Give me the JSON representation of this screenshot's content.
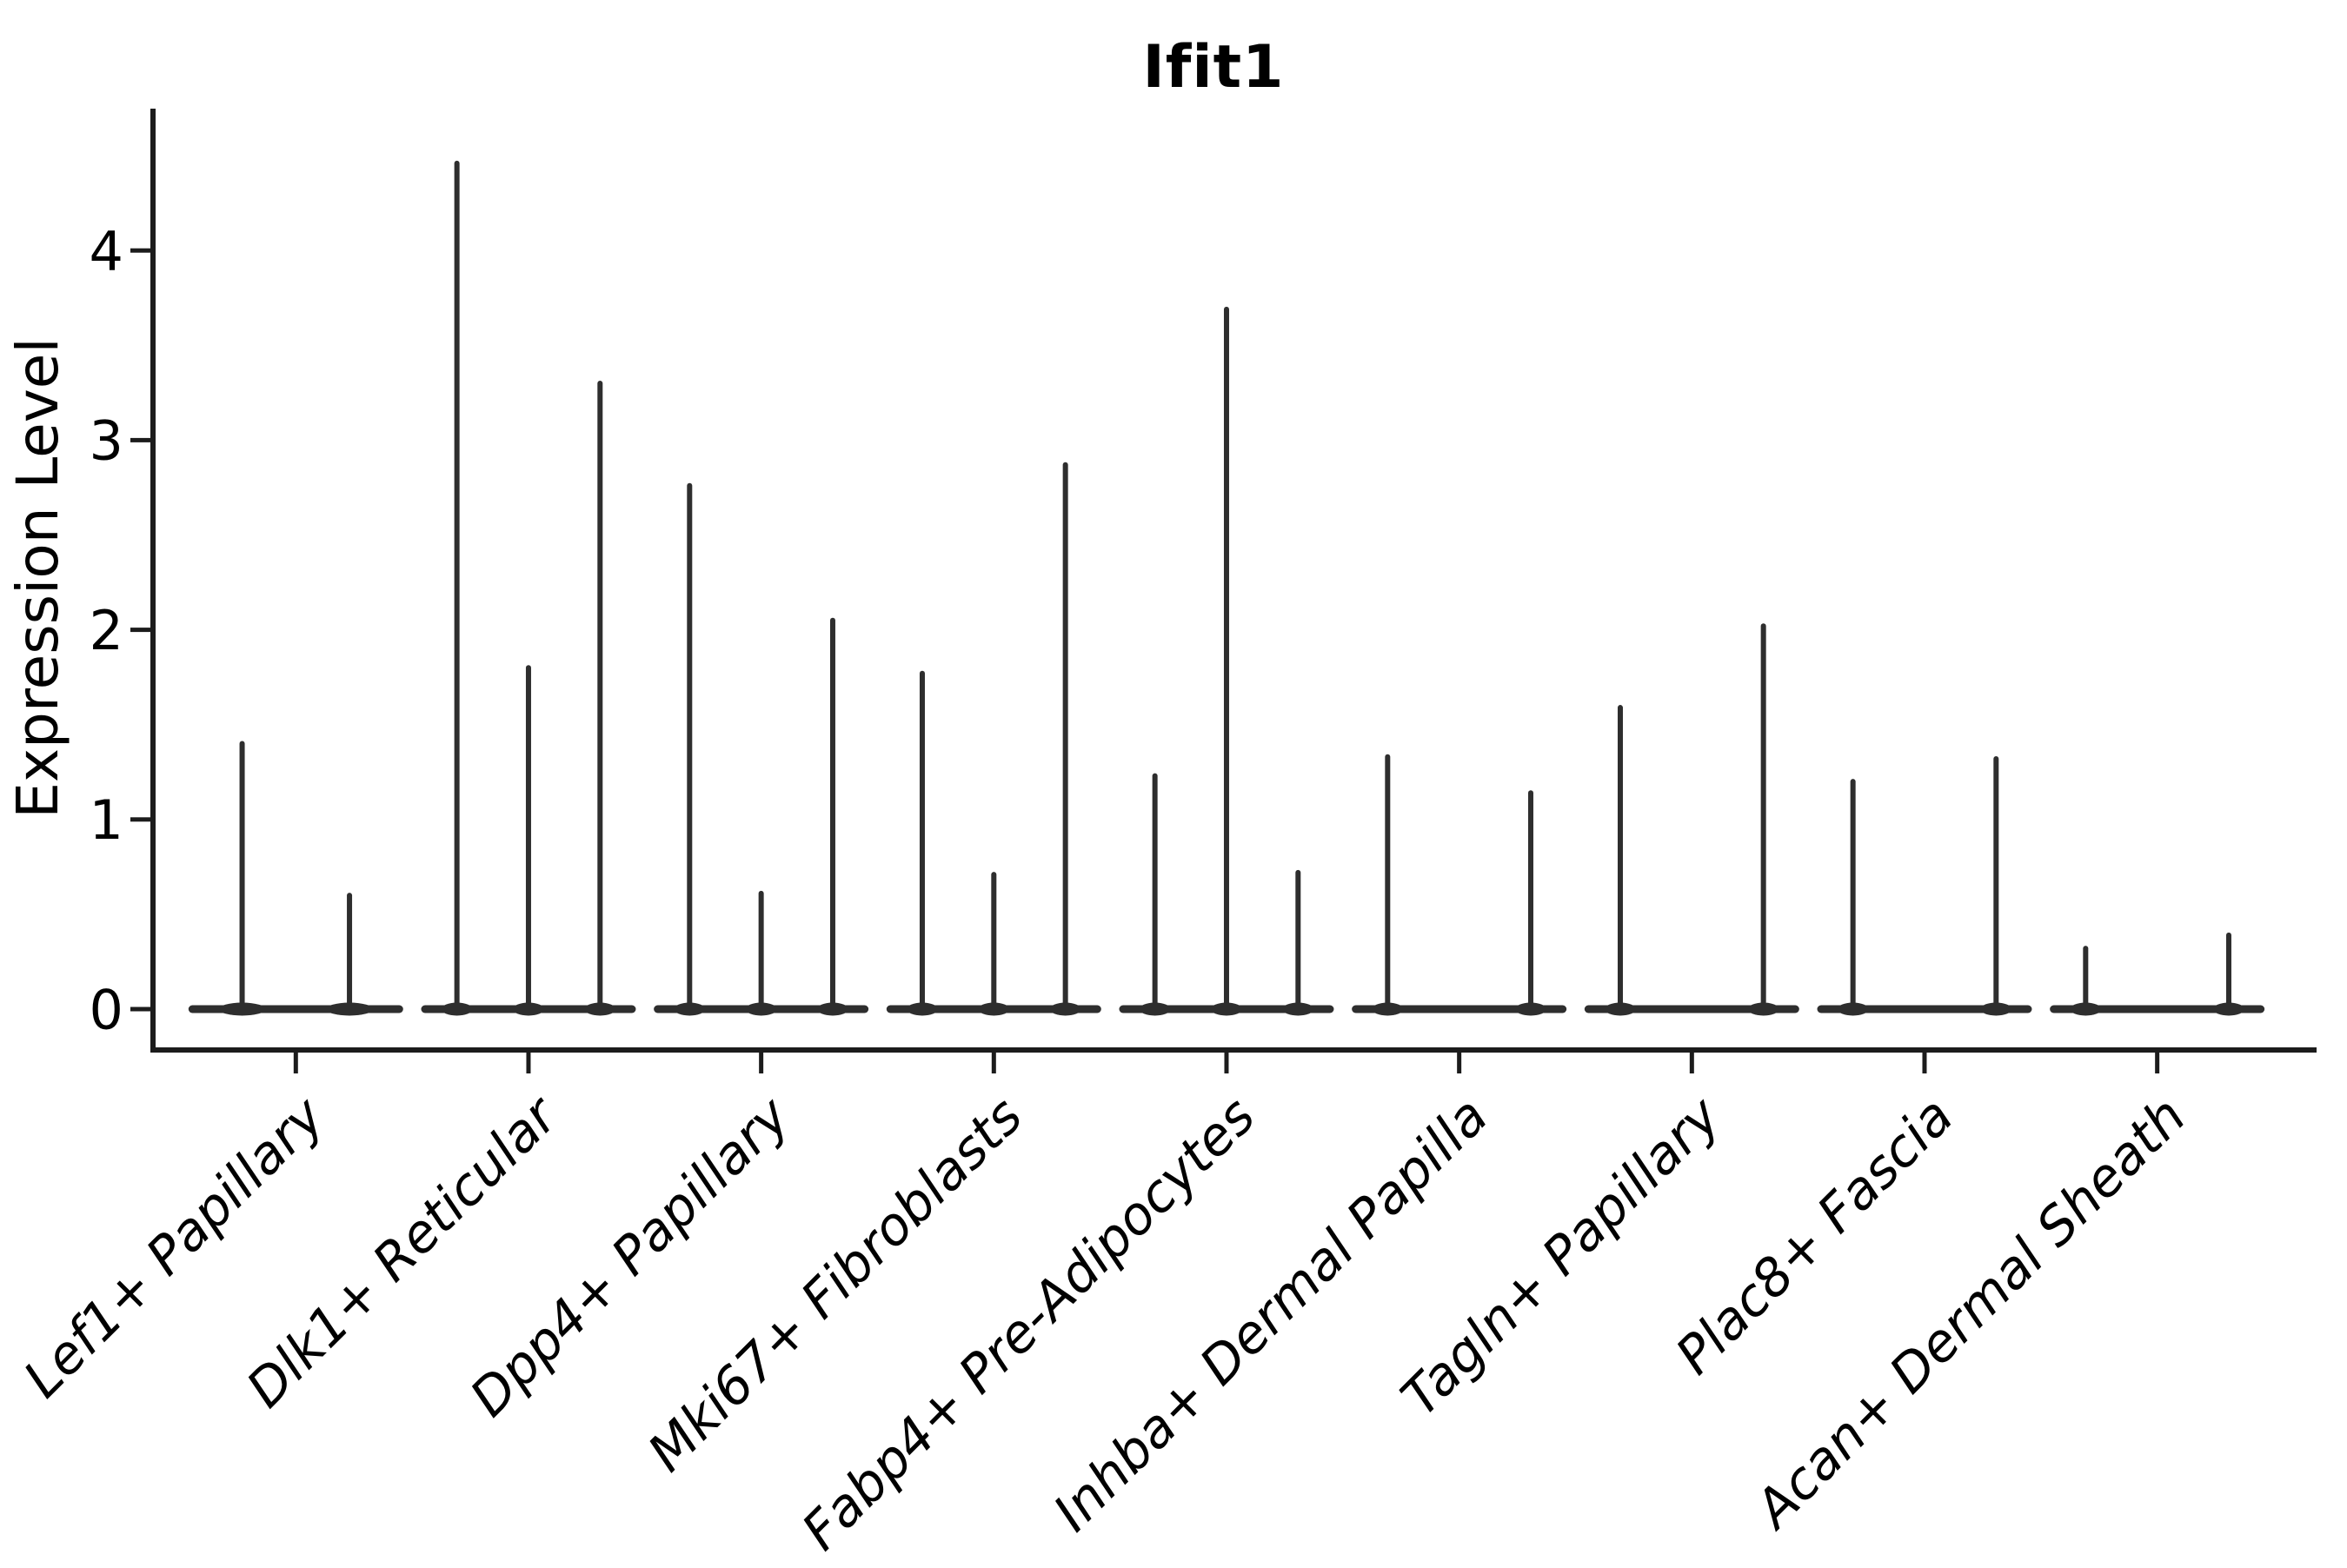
{
  "chart_data": {
    "type": "violin",
    "title": "Ifit1",
    "xlabel": "",
    "ylabel": "Expression Level",
    "yticks": [
      0,
      1,
      2,
      3,
      4
    ],
    "ylim": [
      0,
      4.75
    ],
    "grid": false,
    "legend": "none",
    "baseline_value": 0,
    "categories": [
      "Lef1+ Papillary",
      "Dlk1+ Reticular",
      "Dpp4+ Papillary",
      "Mki67+ Fibroblasts",
      "Fabp4+ Pre-Adipocytes",
      "Inhba+ Dermal Papilla",
      "Tagln+ Papillary",
      "Plac8+ Fascia",
      "Acan+ Dermal Sheath"
    ],
    "groups": [
      {
        "category": "Lef1+ Papillary",
        "violin_max_expression": [
          1.4,
          0.6
        ]
      },
      {
        "category": "Dlk1+ Reticular",
        "violin_max_expression": [
          4.46,
          1.8,
          3.3
        ]
      },
      {
        "category": "Dpp4+ Papillary",
        "violin_max_expression": [
          2.76,
          0.61,
          2.05
        ]
      },
      {
        "category": "Mki67+ Fibroblasts",
        "violin_max_expression": [
          1.77,
          0.71,
          2.87
        ]
      },
      {
        "category": "Fabp4+ Pre-Adipocytes",
        "violin_max_expression": [
          1.23,
          3.69,
          0.72
        ]
      },
      {
        "category": "Inhba+ Dermal Papilla",
        "violin_max_expression": [
          1.33,
          0.0,
          1.14
        ]
      },
      {
        "category": "Tagln+ Papillary",
        "violin_max_expression": [
          1.59,
          0.0,
          2.02
        ]
      },
      {
        "category": "Plac8+ Fascia",
        "violin_max_expression": [
          1.2,
          0.0,
          1.32
        ]
      },
      {
        "category": "Acan+ Dermal Sheath",
        "violin_max_expression": [
          0.32,
          0.0,
          0.39
        ]
      }
    ],
    "colors": {
      "ink": "#1c1c1c",
      "violin": "#2e2e2e",
      "background": "#ffffff"
    }
  }
}
